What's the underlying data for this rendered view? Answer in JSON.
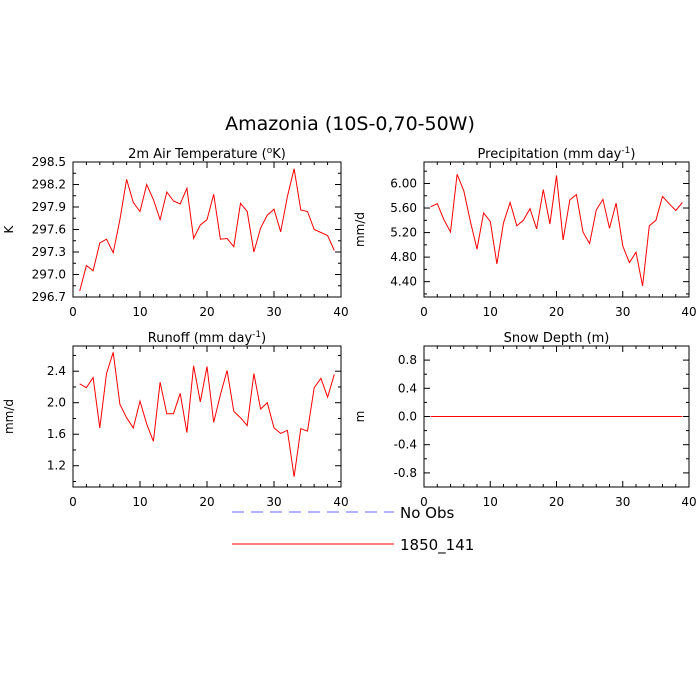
{
  "title": "Amazonia (10S-0,70-50W)",
  "colors": {
    "model": "#ff0000",
    "obs": "#6666ff",
    "axes": "#000000"
  },
  "chart_data": [
    {
      "type": "line",
      "title": "2m Air Temperature (°K)",
      "title_main": "2m Air Temperature (",
      "title_sup": "o",
      "title_end": "K)",
      "ylabel": "K",
      "xlim": [
        0,
        40
      ],
      "ylim": [
        296.7,
        298.5
      ],
      "xticks": [
        0,
        10,
        20,
        30,
        40
      ],
      "xtick_labels": [
        "0",
        "10",
        "20",
        "30",
        "40"
      ],
      "yticks": [
        296.7,
        297.0,
        297.3,
        297.6,
        297.9,
        298.2,
        298.5
      ],
      "ytick_labels": [
        "296.7",
        "297.0",
        "297.3",
        "297.6",
        "297.9",
        "298.2",
        "298.5"
      ],
      "series": [
        {
          "name": "1850_141",
          "x": [
            1,
            2,
            3,
            4,
            5,
            6,
            7,
            8,
            9,
            10,
            11,
            12,
            13,
            14,
            15,
            16,
            17,
            18,
            19,
            20,
            21,
            22,
            23,
            24,
            25,
            26,
            27,
            28,
            29,
            30,
            31,
            32,
            33,
            34,
            35,
            36,
            37,
            38,
            39
          ],
          "values": [
            296.78,
            297.12,
            297.05,
            297.42,
            297.47,
            297.29,
            297.73,
            298.27,
            297.96,
            297.84,
            298.2,
            298.0,
            297.73,
            298.1,
            297.98,
            297.94,
            298.15,
            297.48,
            297.66,
            297.73,
            298.07,
            297.47,
            297.48,
            297.37,
            297.95,
            297.84,
            297.3,
            297.62,
            297.79,
            297.87,
            297.57,
            298.04,
            298.41,
            297.86,
            297.84,
            297.6,
            297.56,
            297.52,
            297.32
          ]
        }
      ]
    },
    {
      "type": "line",
      "title": "Precipitation (mm day-1)",
      "title_main": "Precipitation (mm day",
      "title_sup": "-1",
      "title_end": ")",
      "ylabel": "mm/d",
      "xlim": [
        0,
        40
      ],
      "ylim": [
        4.15,
        6.35
      ],
      "xticks": [
        0,
        10,
        20,
        30,
        40
      ],
      "xtick_labels": [
        "0",
        "10",
        "20",
        "30",
        "40"
      ],
      "yticks": [
        4.4,
        4.8,
        5.2,
        5.6,
        6.0
      ],
      "ytick_labels": [
        "4.40",
        "4.80",
        "5.20",
        "5.60",
        "6.00"
      ],
      "series": [
        {
          "name": "1850_141",
          "x": [
            1,
            2,
            3,
            4,
            5,
            6,
            7,
            8,
            9,
            10,
            11,
            12,
            13,
            14,
            15,
            16,
            17,
            18,
            19,
            20,
            21,
            22,
            23,
            24,
            25,
            26,
            27,
            28,
            29,
            30,
            31,
            32,
            33,
            34,
            35,
            36,
            37,
            38,
            39
          ],
          "values": [
            5.62,
            5.67,
            5.41,
            5.21,
            6.15,
            5.88,
            5.38,
            4.93,
            5.52,
            5.38,
            4.69,
            5.36,
            5.69,
            5.31,
            5.4,
            5.59,
            5.26,
            5.9,
            5.34,
            6.13,
            5.08,
            5.73,
            5.82,
            5.21,
            5.02,
            5.57,
            5.74,
            5.27,
            5.68,
            4.98,
            4.71,
            4.88,
            4.33,
            5.31,
            5.4,
            5.79,
            5.67,
            5.56,
            5.69
          ]
        }
      ]
    },
    {
      "type": "line",
      "title": "Runoff (mm day-1)",
      "title_main": "Runoff (mm day",
      "title_sup": "-1",
      "title_end": ")",
      "ylabel": "mm/d",
      "xlim": [
        0,
        40
      ],
      "ylim": [
        0.93,
        2.72
      ],
      "xticks": [
        0,
        10,
        20,
        30,
        40
      ],
      "xtick_labels": [
        "0",
        "10",
        "20",
        "30",
        "40"
      ],
      "yticks": [
        1.2,
        1.6,
        2.0,
        2.4
      ],
      "ytick_labels": [
        "1.2",
        "1.6",
        "2.0",
        "2.4"
      ],
      "series": [
        {
          "name": "1850_141",
          "x": [
            1,
            2,
            3,
            4,
            5,
            6,
            7,
            8,
            9,
            10,
            11,
            12,
            13,
            14,
            15,
            16,
            17,
            18,
            19,
            20,
            21,
            22,
            23,
            24,
            25,
            26,
            27,
            28,
            29,
            30,
            31,
            32,
            33,
            34,
            35,
            36,
            37,
            38,
            39
          ],
          "values": [
            2.24,
            2.19,
            2.32,
            1.68,
            2.37,
            2.64,
            1.98,
            1.81,
            1.68,
            2.02,
            1.73,
            1.51,
            2.26,
            1.86,
            1.86,
            2.12,
            1.62,
            2.47,
            2.01,
            2.46,
            1.75,
            2.1,
            2.41,
            1.89,
            1.81,
            1.71,
            2.37,
            1.92,
            2.0,
            1.68,
            1.61,
            1.65,
            1.06,
            1.67,
            1.64,
            2.19,
            2.31,
            2.07,
            2.36
          ]
        }
      ]
    },
    {
      "type": "line",
      "title": "Snow Depth (m)",
      "title_main": "Snow Depth (m)",
      "title_sup": "",
      "title_end": "",
      "ylabel": "m",
      "xlim": [
        0,
        40
      ],
      "ylim": [
        -1.0,
        1.0
      ],
      "xticks": [
        0,
        10,
        20,
        30,
        40
      ],
      "xtick_labels": [
        "0",
        "10",
        "20",
        "30",
        "40"
      ],
      "yticks": [
        -0.8,
        -0.4,
        0.0,
        0.4,
        0.8
      ],
      "ytick_labels": [
        "-0.8",
        "-0.4",
        "0.0",
        "0.4",
        "0.8"
      ],
      "series": [
        {
          "name": "1850_141",
          "x": [
            1,
            39
          ],
          "values": [
            0.0,
            0.0
          ]
        }
      ]
    }
  ],
  "legend": [
    {
      "label": "No Obs",
      "style": "dashed",
      "color": "#6666ff"
    },
    {
      "label": "1850_141",
      "style": "solid",
      "color": "#ff0000"
    }
  ]
}
